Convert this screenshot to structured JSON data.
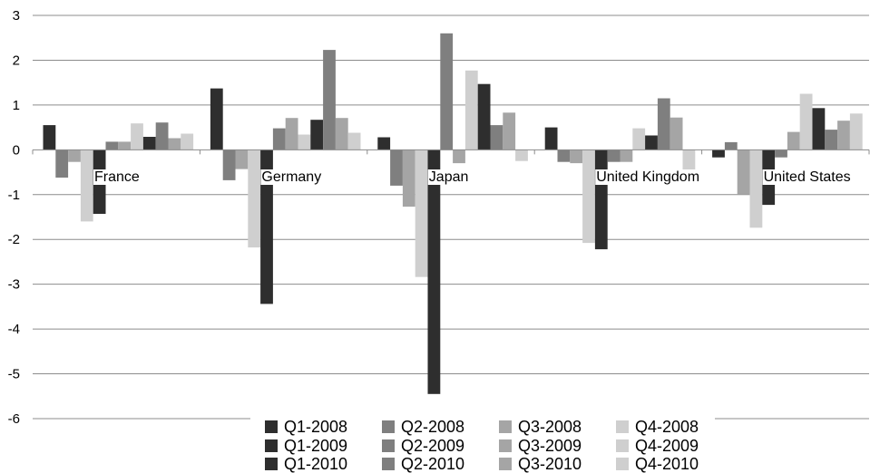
{
  "chart_data": {
    "type": "bar",
    "categories": [
      "France",
      "Germany",
      "Japan",
      "United Kingdom",
      "United States"
    ],
    "ylim": [
      -6,
      3
    ],
    "yticks": [
      "3",
      "2",
      "1",
      "0",
      "-1",
      "-2",
      "-3",
      "-4",
      "-5",
      "-6"
    ],
    "grid": true,
    "legend_position": "bottom",
    "series": [
      {
        "name": "Q1-2008",
        "color": "#2e2e2e",
        "values": [
          0.55,
          1.37,
          0.28,
          0.5,
          -0.17
        ]
      },
      {
        "name": "Q2-2008",
        "color": "#7f7f7f",
        "values": [
          -0.62,
          -0.68,
          -0.8,
          -0.27,
          0.17
        ]
      },
      {
        "name": "Q3-2008",
        "color": "#a5a5a5",
        "values": [
          -0.27,
          -0.43,
          -1.27,
          -0.3,
          -1.0
        ]
      },
      {
        "name": "Q4-2008",
        "color": "#cfcfcf",
        "values": [
          -1.6,
          -2.18,
          -2.84,
          -2.08,
          -1.74
        ]
      },
      {
        "name": "Q1-2009",
        "color": "#2e2e2e",
        "values": [
          -1.43,
          -3.44,
          -5.45,
          -2.22,
          -1.23
        ]
      },
      {
        "name": "Q2-2009",
        "color": "#7f7f7f",
        "values": [
          0.18,
          0.48,
          2.6,
          -0.27,
          -0.17
        ]
      },
      {
        "name": "Q3-2009",
        "color": "#a5a5a5",
        "values": [
          0.18,
          0.71,
          -0.3,
          -0.27,
          0.4
        ]
      },
      {
        "name": "Q4-2009",
        "color": "#cfcfcf",
        "values": [
          0.59,
          0.34,
          1.77,
          0.48,
          1.25
        ]
      },
      {
        "name": "Q1-2010",
        "color": "#2e2e2e",
        "values": [
          0.29,
          0.67,
          1.47,
          0.32,
          0.93
        ]
      },
      {
        "name": "Q2-2010",
        "color": "#7f7f7f",
        "values": [
          0.61,
          2.23,
          0.55,
          1.15,
          0.45
        ]
      },
      {
        "name": "Q3-2010",
        "color": "#a5a5a5",
        "values": [
          0.26,
          0.71,
          0.83,
          0.72,
          0.65
        ]
      },
      {
        "name": "Q4-2010",
        "color": "#cfcfcf",
        "values": [
          0.36,
          0.38,
          -0.25,
          -0.5,
          0.81
        ]
      }
    ]
  }
}
